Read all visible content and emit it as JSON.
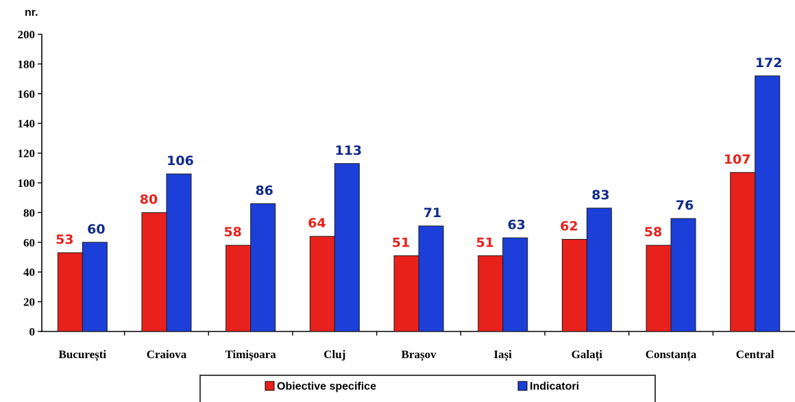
{
  "chart_data": {
    "type": "bar",
    "ylabel": "nr.",
    "ylim": [
      0,
      200
    ],
    "yticks": [
      0,
      20,
      40,
      60,
      80,
      100,
      120,
      140,
      160,
      180,
      200
    ],
    "grid": false,
    "legend_position": "bottom",
    "categories": [
      "București",
      "Craiova",
      "Timişoara",
      "Cluj",
      "Brașov",
      "Iași",
      "Galați",
      "Constanța",
      "Central"
    ],
    "series": [
      {
        "name": "Obiective specifice",
        "color": "#e8211c",
        "label_color": "#e8211c",
        "values": [
          53,
          80,
          58,
          64,
          51,
          51,
          62,
          58,
          107
        ]
      },
      {
        "name": "Indicatori",
        "color": "#1b3fd8",
        "label_color": "#102a8a",
        "values": [
          60,
          106,
          86,
          113,
          71,
          63,
          83,
          76,
          172
        ]
      }
    ]
  }
}
